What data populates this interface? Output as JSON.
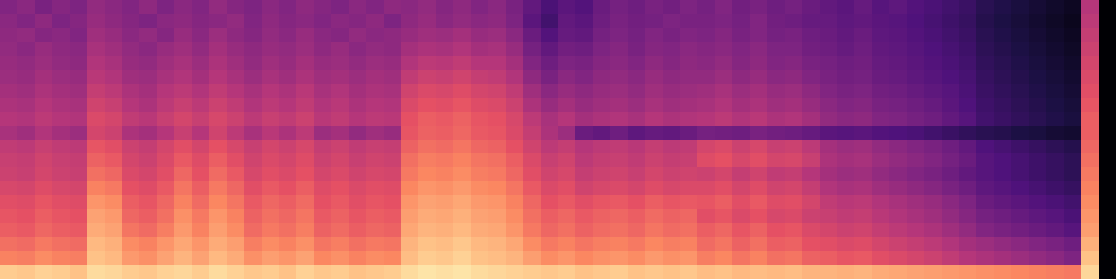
{
  "chart_data": {
    "type": "heatmap",
    "tick_labels": false,
    "zlim": [
      0,
      1
    ],
    "cells": [
      [
        0.38,
        0.4,
        0.36,
        0.39,
        0.37,
        0.42,
        0.4,
        0.38,
        0.41,
        0.37,
        0.4,
        0.38,
        0.42,
        0.39,
        0.37,
        0.4,
        0.38,
        0.41,
        0.39,
        0.37,
        0.4,
        0.38,
        0.41,
        0.4,
        0.42,
        0.39,
        0.41,
        0.38,
        0.4,
        0.36,
        0.3,
        0.24,
        0.28,
        0.26,
        0.32,
        0.35,
        0.33,
        0.36,
        0.34,
        0.37,
        0.35,
        0.38,
        0.34,
        0.36,
        0.33,
        0.35,
        0.32,
        0.3,
        0.28,
        0.31,
        0.27,
        0.29,
        0.26,
        0.24,
        0.22,
        0.2,
        0.16,
        0.14,
        0.12,
        0.1,
        0.08,
        0.06,
        0.5,
        0.0
      ],
      [
        0.4,
        0.38,
        0.41,
        0.37,
        0.39,
        0.43,
        0.41,
        0.39,
        0.37,
        0.4,
        0.41,
        0.39,
        0.4,
        0.42,
        0.38,
        0.41,
        0.39,
        0.4,
        0.38,
        0.4,
        0.39,
        0.41,
        0.37,
        0.41,
        0.43,
        0.4,
        0.42,
        0.4,
        0.41,
        0.37,
        0.28,
        0.22,
        0.3,
        0.28,
        0.33,
        0.36,
        0.34,
        0.35,
        0.37,
        0.36,
        0.36,
        0.37,
        0.35,
        0.38,
        0.34,
        0.33,
        0.31,
        0.31,
        0.29,
        0.3,
        0.28,
        0.27,
        0.25,
        0.23,
        0.21,
        0.19,
        0.15,
        0.13,
        0.11,
        0.09,
        0.07,
        0.05,
        0.52,
        0.0
      ],
      [
        0.41,
        0.42,
        0.39,
        0.4,
        0.38,
        0.45,
        0.43,
        0.4,
        0.42,
        0.39,
        0.43,
        0.4,
        0.44,
        0.41,
        0.39,
        0.42,
        0.4,
        0.43,
        0.4,
        0.39,
        0.42,
        0.4,
        0.41,
        0.43,
        0.45,
        0.44,
        0.46,
        0.43,
        0.44,
        0.4,
        0.32,
        0.26,
        0.31,
        0.3,
        0.35,
        0.37,
        0.35,
        0.38,
        0.36,
        0.38,
        0.37,
        0.39,
        0.36,
        0.38,
        0.35,
        0.36,
        0.33,
        0.32,
        0.3,
        0.32,
        0.29,
        0.28,
        0.26,
        0.24,
        0.22,
        0.2,
        0.16,
        0.14,
        0.12,
        0.1,
        0.08,
        0.06,
        0.54,
        0.0
      ],
      [
        0.42,
        0.4,
        0.43,
        0.41,
        0.4,
        0.47,
        0.45,
        0.42,
        0.4,
        0.43,
        0.45,
        0.42,
        0.46,
        0.43,
        0.41,
        0.43,
        0.42,
        0.44,
        0.41,
        0.43,
        0.4,
        0.42,
        0.41,
        0.46,
        0.48,
        0.47,
        0.49,
        0.46,
        0.47,
        0.43,
        0.35,
        0.3,
        0.34,
        0.33,
        0.37,
        0.39,
        0.36,
        0.39,
        0.38,
        0.4,
        0.39,
        0.4,
        0.38,
        0.4,
        0.37,
        0.37,
        0.34,
        0.33,
        0.31,
        0.33,
        0.3,
        0.29,
        0.27,
        0.25,
        0.23,
        0.21,
        0.17,
        0.15,
        0.13,
        0.11,
        0.09,
        0.07,
        0.56,
        0.0
      ],
      [
        0.43,
        0.42,
        0.44,
        0.42,
        0.41,
        0.49,
        0.47,
        0.43,
        0.42,
        0.45,
        0.47,
        0.44,
        0.48,
        0.45,
        0.42,
        0.45,
        0.43,
        0.46,
        0.43,
        0.44,
        0.42,
        0.44,
        0.43,
        0.49,
        0.52,
        0.51,
        0.53,
        0.5,
        0.5,
        0.46,
        0.38,
        0.33,
        0.37,
        0.36,
        0.39,
        0.4,
        0.38,
        0.41,
        0.39,
        0.41,
        0.4,
        0.42,
        0.39,
        0.41,
        0.38,
        0.39,
        0.36,
        0.35,
        0.33,
        0.34,
        0.31,
        0.3,
        0.28,
        0.26,
        0.24,
        0.22,
        0.18,
        0.16,
        0.14,
        0.12,
        0.1,
        0.08,
        0.58,
        0.0
      ],
      [
        0.44,
        0.43,
        0.46,
        0.44,
        0.43,
        0.51,
        0.49,
        0.45,
        0.44,
        0.47,
        0.49,
        0.46,
        0.5,
        0.47,
        0.44,
        0.47,
        0.45,
        0.48,
        0.45,
        0.46,
        0.44,
        0.46,
        0.45,
        0.53,
        0.56,
        0.55,
        0.57,
        0.54,
        0.53,
        0.49,
        0.41,
        0.36,
        0.4,
        0.38,
        0.41,
        0.42,
        0.4,
        0.43,
        0.41,
        0.42,
        0.42,
        0.44,
        0.41,
        0.43,
        0.4,
        0.41,
        0.38,
        0.36,
        0.34,
        0.35,
        0.32,
        0.31,
        0.29,
        0.27,
        0.25,
        0.23,
        0.19,
        0.17,
        0.15,
        0.13,
        0.11,
        0.09,
        0.6,
        0.0
      ],
      [
        0.46,
        0.45,
        0.48,
        0.46,
        0.45,
        0.54,
        0.52,
        0.48,
        0.46,
        0.5,
        0.52,
        0.49,
        0.53,
        0.5,
        0.47,
        0.5,
        0.48,
        0.51,
        0.47,
        0.49,
        0.46,
        0.48,
        0.47,
        0.57,
        0.6,
        0.59,
        0.61,
        0.58,
        0.57,
        0.53,
        0.45,
        0.4,
        0.43,
        0.41,
        0.43,
        0.44,
        0.42,
        0.45,
        0.43,
        0.44,
        0.45,
        0.47,
        0.44,
        0.46,
        0.43,
        0.44,
        0.41,
        0.38,
        0.36,
        0.37,
        0.34,
        0.33,
        0.31,
        0.29,
        0.27,
        0.24,
        0.2,
        0.18,
        0.16,
        0.14,
        0.12,
        0.1,
        0.62,
        0.0
      ],
      [
        0.48,
        0.47,
        0.5,
        0.48,
        0.47,
        0.57,
        0.55,
        0.5,
        0.48,
        0.52,
        0.55,
        0.52,
        0.56,
        0.53,
        0.49,
        0.52,
        0.5,
        0.53,
        0.49,
        0.51,
        0.48,
        0.5,
        0.49,
        0.6,
        0.63,
        0.62,
        0.64,
        0.61,
        0.6,
        0.56,
        0.48,
        0.43,
        0.46,
        0.43,
        0.45,
        0.46,
        0.44,
        0.47,
        0.45,
        0.46,
        0.47,
        0.49,
        0.46,
        0.48,
        0.45,
        0.46,
        0.43,
        0.4,
        0.38,
        0.39,
        0.36,
        0.35,
        0.33,
        0.31,
        0.28,
        0.25,
        0.21,
        0.19,
        0.17,
        0.15,
        0.13,
        0.11,
        0.64,
        0.0
      ],
      [
        0.5,
        0.49,
        0.52,
        0.5,
        0.49,
        0.6,
        0.58,
        0.53,
        0.51,
        0.55,
        0.58,
        0.55,
        0.59,
        0.56,
        0.52,
        0.55,
        0.53,
        0.56,
        0.51,
        0.53,
        0.5,
        0.52,
        0.51,
        0.63,
        0.66,
        0.65,
        0.67,
        0.64,
        0.63,
        0.59,
        0.52,
        0.47,
        0.5,
        0.46,
        0.48,
        0.49,
        0.47,
        0.5,
        0.48,
        0.49,
        0.5,
        0.52,
        0.49,
        0.51,
        0.48,
        0.49,
        0.46,
        0.42,
        0.4,
        0.41,
        0.38,
        0.37,
        0.35,
        0.33,
        0.3,
        0.27,
        0.22,
        0.2,
        0.18,
        0.16,
        0.14,
        0.12,
        0.66,
        0.0
      ],
      [
        0.47,
        0.45,
        0.49,
        0.46,
        0.44,
        0.58,
        0.56,
        0.48,
        0.46,
        0.5,
        0.55,
        0.5,
        0.57,
        0.52,
        0.47,
        0.51,
        0.48,
        0.52,
        0.44,
        0.46,
        0.42,
        0.45,
        0.43,
        0.64,
        0.67,
        0.66,
        0.68,
        0.65,
        0.64,
        0.6,
        0.54,
        0.48,
        0.44,
        0.32,
        0.3,
        0.33,
        0.29,
        0.31,
        0.3,
        0.32,
        0.35,
        0.34,
        0.33,
        0.36,
        0.34,
        0.33,
        0.31,
        0.28,
        0.27,
        0.28,
        0.26,
        0.25,
        0.24,
        0.22,
        0.2,
        0.18,
        0.16,
        0.15,
        0.13,
        0.12,
        0.1,
        0.09,
        0.66,
        0.0
      ],
      [
        0.53,
        0.52,
        0.55,
        0.53,
        0.52,
        0.64,
        0.62,
        0.56,
        0.54,
        0.58,
        0.62,
        0.58,
        0.63,
        0.59,
        0.55,
        0.58,
        0.56,
        0.59,
        0.54,
        0.56,
        0.53,
        0.55,
        0.54,
        0.67,
        0.7,
        0.69,
        0.71,
        0.68,
        0.67,
        0.63,
        0.57,
        0.52,
        0.54,
        0.5,
        0.52,
        0.53,
        0.51,
        0.54,
        0.52,
        0.53,
        0.58,
        0.6,
        0.56,
        0.59,
        0.55,
        0.56,
        0.52,
        0.46,
        0.44,
        0.45,
        0.42,
        0.4,
        0.38,
        0.36,
        0.33,
        0.3,
        0.25,
        0.23,
        0.21,
        0.19,
        0.17,
        0.15,
        0.68,
        0.0
      ],
      [
        0.55,
        0.54,
        0.57,
        0.55,
        0.54,
        0.67,
        0.65,
        0.58,
        0.56,
        0.6,
        0.65,
        0.61,
        0.66,
        0.62,
        0.57,
        0.6,
        0.58,
        0.61,
        0.56,
        0.58,
        0.55,
        0.57,
        0.56,
        0.7,
        0.73,
        0.72,
        0.74,
        0.71,
        0.7,
        0.66,
        0.6,
        0.55,
        0.57,
        0.52,
        0.54,
        0.55,
        0.53,
        0.56,
        0.54,
        0.55,
        0.61,
        0.63,
        0.59,
        0.62,
        0.58,
        0.59,
        0.55,
        0.48,
        0.46,
        0.47,
        0.44,
        0.42,
        0.4,
        0.38,
        0.35,
        0.32,
        0.27,
        0.25,
        0.23,
        0.21,
        0.19,
        0.17,
        0.7,
        0.0
      ],
      [
        0.56,
        0.55,
        0.58,
        0.56,
        0.55,
        0.7,
        0.68,
        0.6,
        0.58,
        0.62,
        0.68,
        0.63,
        0.69,
        0.65,
        0.59,
        0.62,
        0.6,
        0.63,
        0.58,
        0.6,
        0.57,
        0.59,
        0.58,
        0.72,
        0.75,
        0.74,
        0.76,
        0.73,
        0.72,
        0.68,
        0.62,
        0.57,
        0.59,
        0.54,
        0.56,
        0.57,
        0.55,
        0.58,
        0.56,
        0.57,
        0.56,
        0.58,
        0.54,
        0.57,
        0.53,
        0.54,
        0.5,
        0.46,
        0.44,
        0.45,
        0.42,
        0.4,
        0.38,
        0.36,
        0.33,
        0.3,
        0.27,
        0.25,
        0.23,
        0.21,
        0.19,
        0.17,
        0.72,
        0.0
      ],
      [
        0.59,
        0.58,
        0.61,
        0.59,
        0.58,
        0.74,
        0.72,
        0.63,
        0.61,
        0.65,
        0.71,
        0.66,
        0.72,
        0.68,
        0.62,
        0.65,
        0.63,
        0.66,
        0.61,
        0.63,
        0.6,
        0.62,
        0.61,
        0.75,
        0.78,
        0.77,
        0.79,
        0.76,
        0.75,
        0.71,
        0.65,
        0.6,
        0.62,
        0.57,
        0.59,
        0.6,
        0.58,
        0.61,
        0.59,
        0.6,
        0.6,
        0.62,
        0.58,
        0.61,
        0.57,
        0.58,
        0.54,
        0.49,
        0.47,
        0.48,
        0.45,
        0.43,
        0.41,
        0.39,
        0.36,
        0.33,
        0.29,
        0.27,
        0.25,
        0.23,
        0.21,
        0.19,
        0.74,
        0.0
      ],
      [
        0.62,
        0.61,
        0.64,
        0.62,
        0.61,
        0.78,
        0.76,
        0.66,
        0.64,
        0.68,
        0.74,
        0.69,
        0.75,
        0.71,
        0.65,
        0.68,
        0.66,
        0.69,
        0.63,
        0.65,
        0.62,
        0.64,
        0.63,
        0.78,
        0.81,
        0.8,
        0.82,
        0.79,
        0.78,
        0.74,
        0.68,
        0.63,
        0.65,
        0.62,
        0.64,
        0.65,
        0.63,
        0.66,
        0.64,
        0.65,
        0.64,
        0.66,
        0.62,
        0.65,
        0.61,
        0.62,
        0.58,
        0.53,
        0.51,
        0.52,
        0.49,
        0.47,
        0.45,
        0.43,
        0.4,
        0.37,
        0.32,
        0.3,
        0.28,
        0.26,
        0.24,
        0.22,
        0.76,
        0.0
      ],
      [
        0.64,
        0.63,
        0.66,
        0.64,
        0.63,
        0.81,
        0.79,
        0.68,
        0.66,
        0.7,
        0.77,
        0.72,
        0.78,
        0.74,
        0.67,
        0.7,
        0.68,
        0.71,
        0.65,
        0.67,
        0.64,
        0.66,
        0.65,
        0.8,
        0.83,
        0.82,
        0.84,
        0.81,
        0.8,
        0.76,
        0.7,
        0.66,
        0.68,
        0.65,
        0.67,
        0.68,
        0.66,
        0.69,
        0.67,
        0.68,
        0.62,
        0.64,
        0.6,
        0.63,
        0.59,
        0.6,
        0.56,
        0.55,
        0.53,
        0.54,
        0.51,
        0.49,
        0.47,
        0.45,
        0.42,
        0.39,
        0.35,
        0.33,
        0.31,
        0.29,
        0.27,
        0.24,
        0.78,
        0.0
      ],
      [
        0.66,
        0.65,
        0.68,
        0.66,
        0.65,
        0.83,
        0.81,
        0.71,
        0.69,
        0.73,
        0.79,
        0.74,
        0.8,
        0.76,
        0.69,
        0.72,
        0.7,
        0.73,
        0.67,
        0.69,
        0.66,
        0.68,
        0.67,
        0.82,
        0.85,
        0.84,
        0.86,
        0.83,
        0.82,
        0.78,
        0.72,
        0.68,
        0.7,
        0.67,
        0.69,
        0.7,
        0.68,
        0.71,
        0.69,
        0.7,
        0.66,
        0.68,
        0.64,
        0.67,
        0.63,
        0.64,
        0.6,
        0.58,
        0.56,
        0.57,
        0.54,
        0.52,
        0.5,
        0.48,
        0.45,
        0.42,
        0.38,
        0.36,
        0.34,
        0.32,
        0.3,
        0.27,
        0.8,
        0.0
      ],
      [
        0.7,
        0.69,
        0.72,
        0.7,
        0.69,
        0.86,
        0.84,
        0.76,
        0.74,
        0.78,
        0.82,
        0.78,
        0.83,
        0.8,
        0.73,
        0.76,
        0.74,
        0.77,
        0.71,
        0.73,
        0.7,
        0.72,
        0.71,
        0.85,
        0.88,
        0.87,
        0.89,
        0.86,
        0.85,
        0.82,
        0.76,
        0.72,
        0.74,
        0.71,
        0.73,
        0.74,
        0.72,
        0.75,
        0.73,
        0.74,
        0.69,
        0.71,
        0.67,
        0.7,
        0.66,
        0.67,
        0.63,
        0.62,
        0.6,
        0.61,
        0.58,
        0.56,
        0.54,
        0.52,
        0.49,
        0.46,
        0.44,
        0.42,
        0.4,
        0.38,
        0.36,
        0.33,
        0.84,
        0.0
      ],
      [
        0.74,
        0.73,
        0.76,
        0.74,
        0.73,
        0.88,
        0.86,
        0.79,
        0.77,
        0.81,
        0.85,
        0.81,
        0.86,
        0.83,
        0.77,
        0.8,
        0.78,
        0.81,
        0.75,
        0.77,
        0.74,
        0.76,
        0.75,
        0.87,
        0.9,
        0.89,
        0.91,
        0.88,
        0.87,
        0.85,
        0.8,
        0.76,
        0.78,
        0.75,
        0.77,
        0.78,
        0.76,
        0.79,
        0.77,
        0.78,
        0.73,
        0.75,
        0.71,
        0.74,
        0.7,
        0.71,
        0.67,
        0.66,
        0.64,
        0.65,
        0.62,
        0.6,
        0.58,
        0.56,
        0.53,
        0.5,
        0.48,
        0.46,
        0.44,
        0.42,
        0.4,
        0.37,
        0.88,
        0.0
      ],
      [
        0.9,
        0.89,
        0.91,
        0.9,
        0.88,
        0.93,
        0.92,
        0.9,
        0.89,
        0.91,
        0.92,
        0.9,
        0.93,
        0.91,
        0.89,
        0.9,
        0.88,
        0.91,
        0.89,
        0.9,
        0.88,
        0.89,
        0.9,
        0.93,
        0.95,
        0.94,
        0.95,
        0.93,
        0.92,
        0.91,
        0.9,
        0.89,
        0.9,
        0.88,
        0.89,
        0.9,
        0.88,
        0.89,
        0.88,
        0.89,
        0.87,
        0.88,
        0.86,
        0.87,
        0.86,
        0.87,
        0.85,
        0.85,
        0.84,
        0.85,
        0.83,
        0.82,
        0.81,
        0.8,
        0.79,
        0.78,
        0.77,
        0.76,
        0.75,
        0.74,
        0.73,
        0.72,
        0.92,
        0.0
      ]
    ]
  }
}
